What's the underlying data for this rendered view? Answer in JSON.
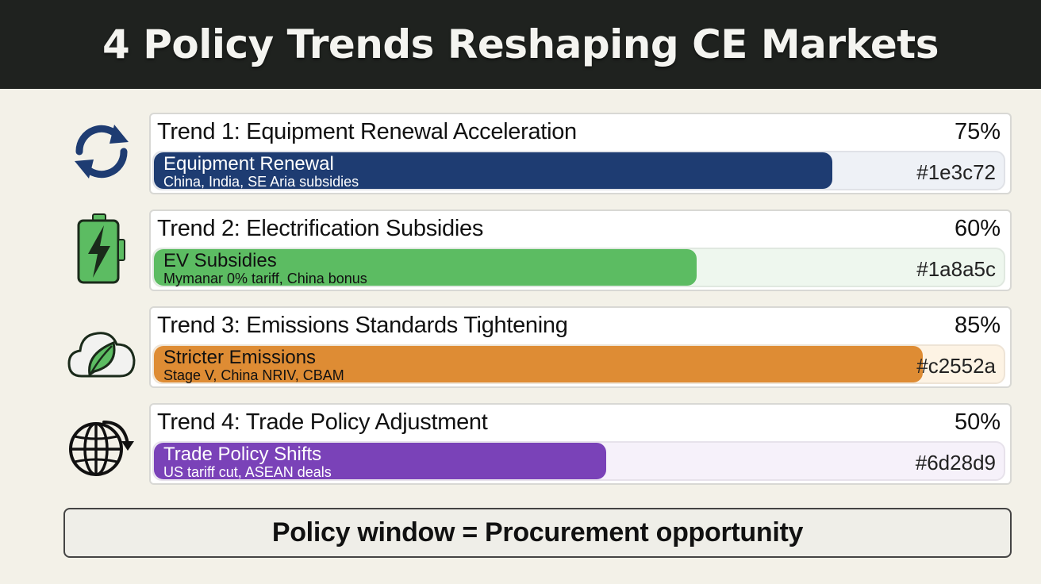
{
  "header": {
    "title": "4 Policy Trends Reshaping CE Markets"
  },
  "chart_data": {
    "type": "bar",
    "orientation": "horizontal",
    "xlim": [
      0,
      100
    ],
    "unit": "%",
    "items": [
      {
        "title": "Trend 1: Equipment Renewal Acceleration",
        "label": "Equipment Renewal",
        "sub": "China, India, SE Aria subsidies",
        "value": 75,
        "value_text": "75%",
        "color": "#1e3c72",
        "hex_text": "#1e3c72",
        "icon": "refresh-icon",
        "track_color": "#eef1f6"
      },
      {
        "title": "Trend 2: Electrification Subsidies",
        "label": "EV Subsidies",
        "sub": "Mymanar 0% tariff, China bonus",
        "value": 60,
        "value_text": "60%",
        "color": "#5cbc62",
        "hex_text": "#1a8a5c",
        "icon": "battery-bolt-icon",
        "track_color": "#eef7ee"
      },
      {
        "title": "Trend 3: Emissions Standards Tightening",
        "label": "Stricter Emissions",
        "sub": "Stage V, China NRIV, CBAM",
        "value": 85,
        "value_text": "85%",
        "color": "#de8c34",
        "hex_text": "#c2552a",
        "icon": "cloud-leaf-icon",
        "track_color": "#fdf3e4"
      },
      {
        "title": "Trend 4: Trade Policy Adjustment",
        "label": "Trade Policy Shifts",
        "sub": "US tariff cut, ASEAN deals",
        "value": 50,
        "value_text": "50%",
        "color": "#7a42b8",
        "hex_text": "#6d28d9",
        "icon": "globe-arrow-icon",
        "track_color": "#f6f1fa"
      }
    ]
  },
  "footer": {
    "text": "Policy window = Procurement opportunity"
  }
}
